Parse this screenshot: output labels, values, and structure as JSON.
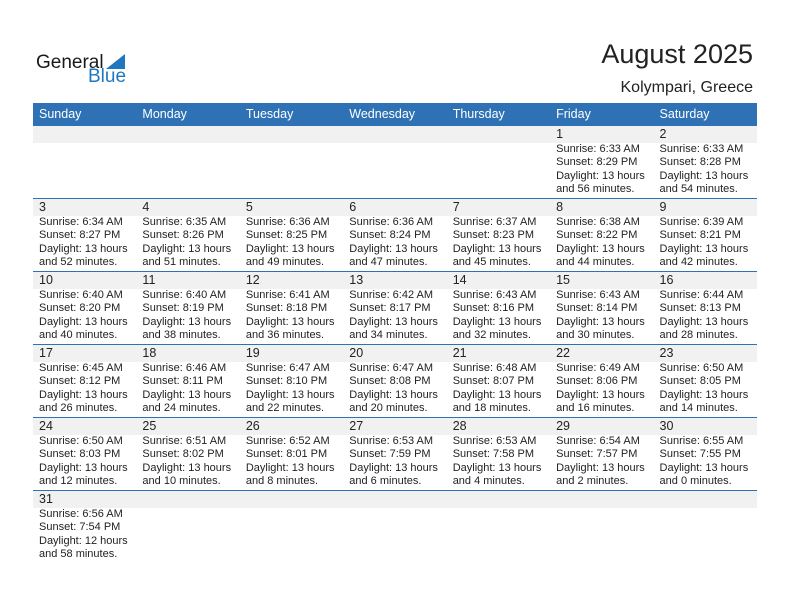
{
  "logo": {
    "text1": "General",
    "text2": "Blue"
  },
  "title": "August 2025",
  "location": "Kolympari, Greece",
  "colors": {
    "header": "#2e71b5",
    "band": "#f1f1f1",
    "logo_blue": "#1f77c0"
  },
  "weekdays": [
    "Sunday",
    "Monday",
    "Tuesday",
    "Wednesday",
    "Thursday",
    "Friday",
    "Saturday"
  ],
  "weeks": [
    [
      null,
      null,
      null,
      null,
      null,
      {
        "day": "1",
        "lines": [
          "Sunrise: 6:33 AM",
          "Sunset: 8:29 PM",
          "Daylight: 13 hours",
          "and 56 minutes."
        ]
      },
      {
        "day": "2",
        "lines": [
          "Sunrise: 6:33 AM",
          "Sunset: 8:28 PM",
          "Daylight: 13 hours",
          "and 54 minutes."
        ]
      }
    ],
    [
      {
        "day": "3",
        "lines": [
          "Sunrise: 6:34 AM",
          "Sunset: 8:27 PM",
          "Daylight: 13 hours",
          "and 52 minutes."
        ]
      },
      {
        "day": "4",
        "lines": [
          "Sunrise: 6:35 AM",
          "Sunset: 8:26 PM",
          "Daylight: 13 hours",
          "and 51 minutes."
        ]
      },
      {
        "day": "5",
        "lines": [
          "Sunrise: 6:36 AM",
          "Sunset: 8:25 PM",
          "Daylight: 13 hours",
          "and 49 minutes."
        ]
      },
      {
        "day": "6",
        "lines": [
          "Sunrise: 6:36 AM",
          "Sunset: 8:24 PM",
          "Daylight: 13 hours",
          "and 47 minutes."
        ]
      },
      {
        "day": "7",
        "lines": [
          "Sunrise: 6:37 AM",
          "Sunset: 8:23 PM",
          "Daylight: 13 hours",
          "and 45 minutes."
        ]
      },
      {
        "day": "8",
        "lines": [
          "Sunrise: 6:38 AM",
          "Sunset: 8:22 PM",
          "Daylight: 13 hours",
          "and 44 minutes."
        ]
      },
      {
        "day": "9",
        "lines": [
          "Sunrise: 6:39 AM",
          "Sunset: 8:21 PM",
          "Daylight: 13 hours",
          "and 42 minutes."
        ]
      }
    ],
    [
      {
        "day": "10",
        "lines": [
          "Sunrise: 6:40 AM",
          "Sunset: 8:20 PM",
          "Daylight: 13 hours",
          "and 40 minutes."
        ]
      },
      {
        "day": "11",
        "lines": [
          "Sunrise: 6:40 AM",
          "Sunset: 8:19 PM",
          "Daylight: 13 hours",
          "and 38 minutes."
        ]
      },
      {
        "day": "12",
        "lines": [
          "Sunrise: 6:41 AM",
          "Sunset: 8:18 PM",
          "Daylight: 13 hours",
          "and 36 minutes."
        ]
      },
      {
        "day": "13",
        "lines": [
          "Sunrise: 6:42 AM",
          "Sunset: 8:17 PM",
          "Daylight: 13 hours",
          "and 34 minutes."
        ]
      },
      {
        "day": "14",
        "lines": [
          "Sunrise: 6:43 AM",
          "Sunset: 8:16 PM",
          "Daylight: 13 hours",
          "and 32 minutes."
        ]
      },
      {
        "day": "15",
        "lines": [
          "Sunrise: 6:43 AM",
          "Sunset: 8:14 PM",
          "Daylight: 13 hours",
          "and 30 minutes."
        ]
      },
      {
        "day": "16",
        "lines": [
          "Sunrise: 6:44 AM",
          "Sunset: 8:13 PM",
          "Daylight: 13 hours",
          "and 28 minutes."
        ]
      }
    ],
    [
      {
        "day": "17",
        "lines": [
          "Sunrise: 6:45 AM",
          "Sunset: 8:12 PM",
          "Daylight: 13 hours",
          "and 26 minutes."
        ]
      },
      {
        "day": "18",
        "lines": [
          "Sunrise: 6:46 AM",
          "Sunset: 8:11 PM",
          "Daylight: 13 hours",
          "and 24 minutes."
        ]
      },
      {
        "day": "19",
        "lines": [
          "Sunrise: 6:47 AM",
          "Sunset: 8:10 PM",
          "Daylight: 13 hours",
          "and 22 minutes."
        ]
      },
      {
        "day": "20",
        "lines": [
          "Sunrise: 6:47 AM",
          "Sunset: 8:08 PM",
          "Daylight: 13 hours",
          "and 20 minutes."
        ]
      },
      {
        "day": "21",
        "lines": [
          "Sunrise: 6:48 AM",
          "Sunset: 8:07 PM",
          "Daylight: 13 hours",
          "and 18 minutes."
        ]
      },
      {
        "day": "22",
        "lines": [
          "Sunrise: 6:49 AM",
          "Sunset: 8:06 PM",
          "Daylight: 13 hours",
          "and 16 minutes."
        ]
      },
      {
        "day": "23",
        "lines": [
          "Sunrise: 6:50 AM",
          "Sunset: 8:05 PM",
          "Daylight: 13 hours",
          "and 14 minutes."
        ]
      }
    ],
    [
      {
        "day": "24",
        "lines": [
          "Sunrise: 6:50 AM",
          "Sunset: 8:03 PM",
          "Daylight: 13 hours",
          "and 12 minutes."
        ]
      },
      {
        "day": "25",
        "lines": [
          "Sunrise: 6:51 AM",
          "Sunset: 8:02 PM",
          "Daylight: 13 hours",
          "and 10 minutes."
        ]
      },
      {
        "day": "26",
        "lines": [
          "Sunrise: 6:52 AM",
          "Sunset: 8:01 PM",
          "Daylight: 13 hours",
          "and 8 minutes."
        ]
      },
      {
        "day": "27",
        "lines": [
          "Sunrise: 6:53 AM",
          "Sunset: 7:59 PM",
          "Daylight: 13 hours",
          "and 6 minutes."
        ]
      },
      {
        "day": "28",
        "lines": [
          "Sunrise: 6:53 AM",
          "Sunset: 7:58 PM",
          "Daylight: 13 hours",
          "and 4 minutes."
        ]
      },
      {
        "day": "29",
        "lines": [
          "Sunrise: 6:54 AM",
          "Sunset: 7:57 PM",
          "Daylight: 13 hours",
          "and 2 minutes."
        ]
      },
      {
        "day": "30",
        "lines": [
          "Sunrise: 6:55 AM",
          "Sunset: 7:55 PM",
          "Daylight: 13 hours",
          "and 0 minutes."
        ]
      }
    ],
    [
      {
        "day": "31",
        "lines": [
          "Sunrise: 6:56 AM",
          "Sunset: 7:54 PM",
          "Daylight: 12 hours",
          "and 58 minutes."
        ]
      },
      null,
      null,
      null,
      null,
      null,
      null
    ]
  ]
}
